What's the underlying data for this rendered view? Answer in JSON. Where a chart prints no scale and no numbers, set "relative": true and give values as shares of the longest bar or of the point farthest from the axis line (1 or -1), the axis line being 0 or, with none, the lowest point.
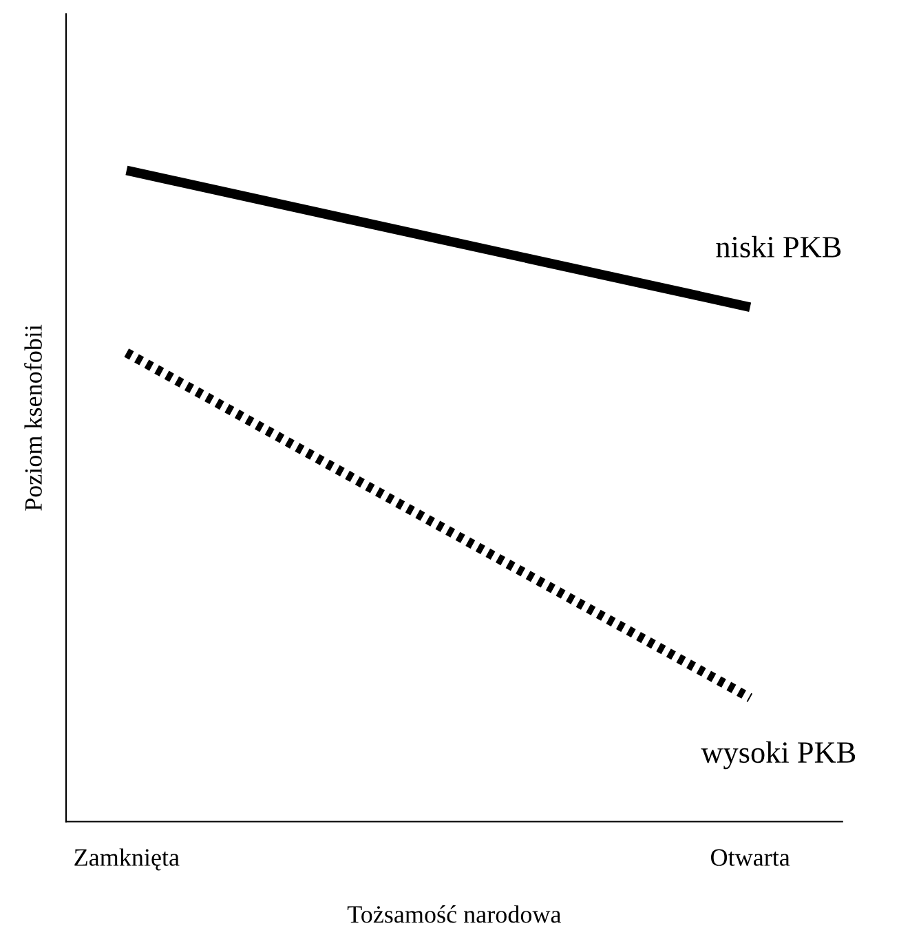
{
  "chart_data": {
    "type": "line",
    "xlabel": "Tożsamość narodowa",
    "ylabel": "Poziom ksenofobii",
    "categories": [
      "Zamknięta",
      "Otwarta"
    ],
    "relative": true,
    "grid": false,
    "legend": false,
    "marker": "none",
    "series": [
      {
        "name": "niski PKB",
        "color": "#000000",
        "line_style": "solid",
        "values": [
          1,
          0.79
        ]
      },
      {
        "name": "wysoki PKB",
        "color": "#000000",
        "line_style": "dotted",
        "values": [
          0.72,
          0.19
        ]
      }
    ]
  }
}
